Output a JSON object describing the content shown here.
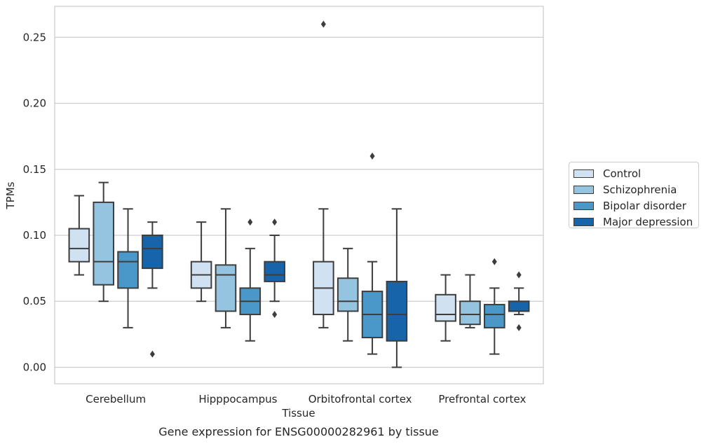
{
  "chart_data": {
    "type": "box",
    "title": "Gene expression for ENSG00000282961 by tissue",
    "xlabel": "Tissue",
    "ylabel": "TPMs",
    "ylim": [
      -0.0125,
      0.2735
    ],
    "yticks": [
      "0.00",
      "0.05",
      "0.10",
      "0.15",
      "0.20",
      "0.25"
    ],
    "grid": "horizontal",
    "legend_position": "right",
    "categories": [
      "Cerebellum",
      "Hipppocampus",
      "Orbitofrontal cortex",
      "Prefrontal cortex"
    ],
    "series": [
      {
        "name": "Control",
        "color": "#d0e1f2",
        "boxes": [
          {
            "whislo": 0.07,
            "q1": 0.08,
            "med": 0.09,
            "q3": 0.105,
            "whishi": 0.13,
            "fliers": []
          },
          {
            "whislo": 0.05,
            "q1": 0.06,
            "med": 0.07,
            "q3": 0.08,
            "whishi": 0.11,
            "fliers": []
          },
          {
            "whislo": 0.03,
            "q1": 0.04,
            "med": 0.06,
            "q3": 0.08,
            "whishi": 0.12,
            "fliers": [
              0.26
            ]
          },
          {
            "whislo": 0.02,
            "q1": 0.035,
            "med": 0.04,
            "q3": 0.055,
            "whishi": 0.07,
            "fliers": []
          }
        ]
      },
      {
        "name": "Schizophrenia",
        "color": "#94c4df",
        "boxes": [
          {
            "whislo": 0.05,
            "q1": 0.0625,
            "med": 0.08,
            "q3": 0.125,
            "whishi": 0.14,
            "fliers": []
          },
          {
            "whislo": 0.03,
            "q1": 0.0425,
            "med": 0.07,
            "q3": 0.0775,
            "whishi": 0.12,
            "fliers": []
          },
          {
            "whislo": 0.02,
            "q1": 0.0425,
            "med": 0.05,
            "q3": 0.0675,
            "whishi": 0.09,
            "fliers": []
          },
          {
            "whislo": 0.03,
            "q1": 0.0325,
            "med": 0.04,
            "q3": 0.05,
            "whishi": 0.07,
            "fliers": []
          }
        ]
      },
      {
        "name": "Bipolar disorder",
        "color": "#4a98c9",
        "boxes": [
          {
            "whislo": 0.03,
            "q1": 0.06,
            "med": 0.08,
            "q3": 0.0875,
            "whishi": 0.12,
            "fliers": []
          },
          {
            "whislo": 0.02,
            "q1": 0.04,
            "med": 0.05,
            "q3": 0.06,
            "whishi": 0.09,
            "fliers": [
              0.11
            ]
          },
          {
            "whislo": 0.01,
            "q1": 0.0225,
            "med": 0.04,
            "q3": 0.0575,
            "whishi": 0.08,
            "fliers": [
              0.16
            ]
          },
          {
            "whislo": 0.01,
            "q1": 0.03,
            "med": 0.04,
            "q3": 0.0475,
            "whishi": 0.06,
            "fliers": [
              0.08
            ]
          }
        ]
      },
      {
        "name": "Major depression",
        "color": "#1764ab",
        "boxes": [
          {
            "whislo": 0.06,
            "q1": 0.075,
            "med": 0.09,
            "q3": 0.1,
            "whishi": 0.11,
            "fliers": [
              0.01
            ]
          },
          {
            "whislo": 0.05,
            "q1": 0.065,
            "med": 0.07,
            "q3": 0.08,
            "whishi": 0.1,
            "fliers": [
              0.11,
              0.04
            ]
          },
          {
            "whislo": 0.0,
            "q1": 0.02,
            "med": 0.04,
            "q3": 0.065,
            "whishi": 0.12,
            "fliers": []
          },
          {
            "whislo": 0.04,
            "q1": 0.0425,
            "med": 0.0425,
            "q3": 0.05,
            "whishi": 0.06,
            "fliers": [
              0.07,
              0.03
            ]
          }
        ]
      }
    ]
  }
}
